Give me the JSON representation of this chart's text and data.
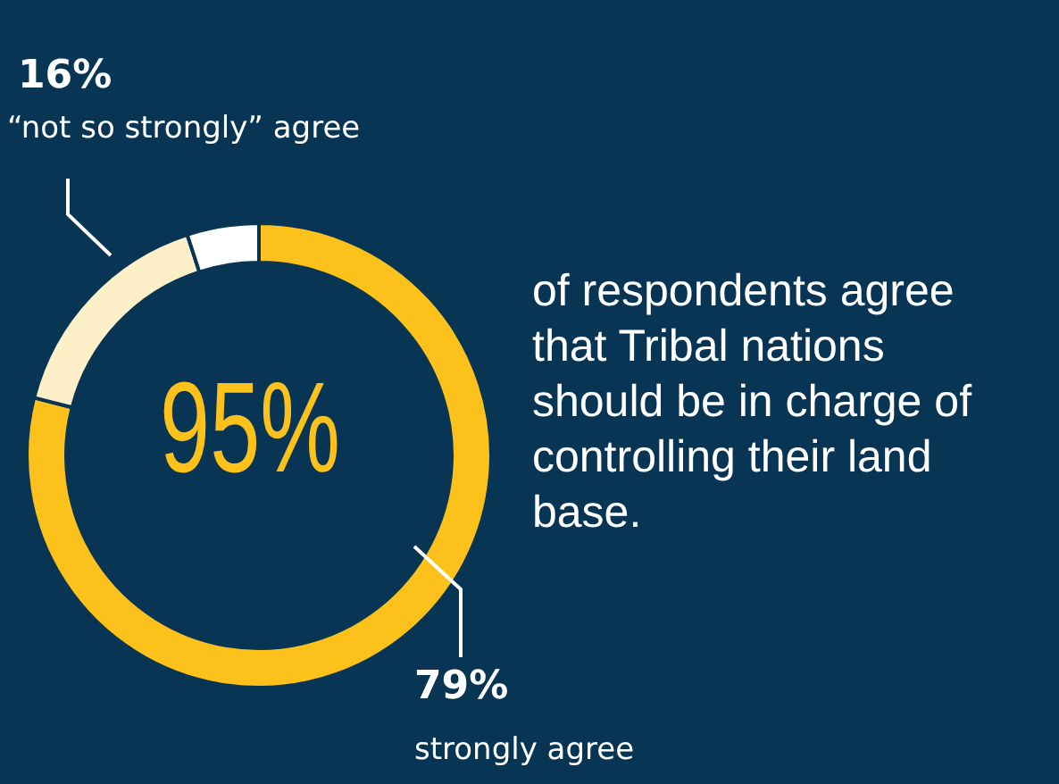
{
  "chart_data": {
    "type": "donut",
    "categories": [
      "strongly agree",
      "“not so strongly” agree",
      null
    ],
    "values": [
      79,
      16,
      5
    ],
    "colors": [
      "#fcc21b",
      "#fdf0c8",
      "#ffffff"
    ],
    "value_labels": [
      "79%",
      "16%",
      null
    ],
    "legend": false,
    "annotations": [
      "95%",
      "of respondents agree that Tribal nations should be in charge of controlling their land base."
    ]
  }
}
